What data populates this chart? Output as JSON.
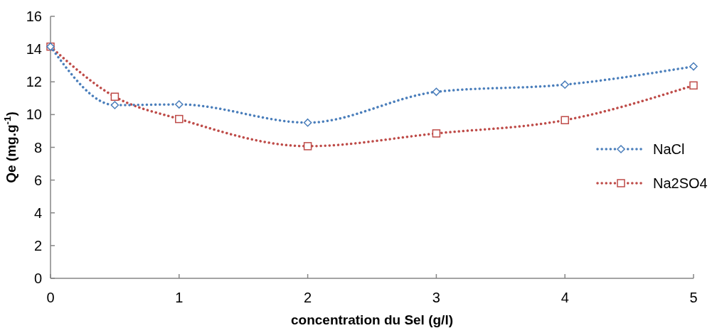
{
  "chart_data": {
    "type": "line",
    "xlabel": "concentration du Sel (g/l)",
    "ylabel": "Qe (mg.g$^{-1}$)",
    "x": [
      0,
      0.5,
      1,
      2,
      3,
      4,
      5
    ],
    "series": [
      {
        "name": "NaCl",
        "color": "#4a7ebb",
        "marker": "diamond",
        "values": [
          14.15,
          10.58,
          10.62,
          9.51,
          11.39,
          11.83,
          12.94
        ]
      },
      {
        "name": "Na2SO4",
        "color": "#be4b48",
        "marker": "square",
        "values": [
          14.15,
          11.09,
          9.73,
          8.07,
          8.85,
          9.66,
          11.78
        ]
      }
    ],
    "xlim": [
      0,
      5
    ],
    "xticks": [
      0,
      1,
      2,
      3,
      4,
      5
    ],
    "ylim": [
      0,
      16
    ],
    "yticks": [
      0,
      2,
      4,
      6,
      8,
      10,
      12,
      14,
      16
    ],
    "grid": false,
    "legend": "right",
    "line_style": "dotted"
  }
}
